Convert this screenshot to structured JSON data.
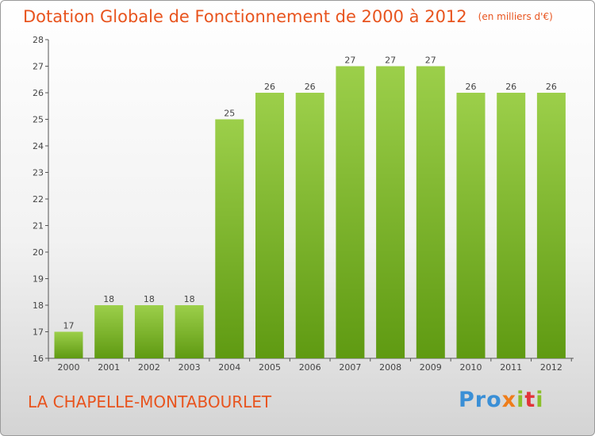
{
  "header": {
    "title": "Dotation Globale de Fonctionnement de 2000 à 2012",
    "subtitle": "(en milliers d'€)"
  },
  "footer": {
    "commune": "LA CHAPELLE-MONTABOURLET",
    "brand": {
      "part1": "Pro",
      "part2": "x",
      "part3": "i",
      "part4": "t",
      "part5": "i"
    }
  },
  "colors": {
    "accent": "#e8541e",
    "bar_top": "#9ccf4a",
    "bar_bottom": "#5f9a12"
  },
  "chart_data": {
    "type": "bar",
    "title": "Dotation Globale de Fonctionnement de 2000 à 2012",
    "subtitle": "(en milliers d'€)",
    "categories": [
      "2000",
      "2001",
      "2002",
      "2003",
      "2004",
      "2005",
      "2006",
      "2007",
      "2008",
      "2009",
      "2010",
      "2011",
      "2012"
    ],
    "values": [
      17,
      18,
      18,
      18,
      25,
      26,
      26,
      27,
      27,
      27,
      26,
      26,
      26
    ],
    "ylim": [
      16,
      28
    ],
    "yticks": [
      16,
      17,
      18,
      19,
      20,
      21,
      22,
      23,
      24,
      25,
      26,
      27,
      28
    ],
    "grid": false,
    "legend": "none"
  }
}
